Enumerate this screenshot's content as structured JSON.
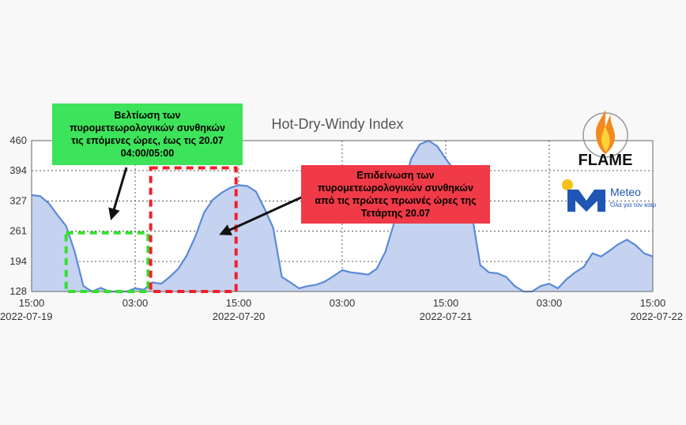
{
  "chart_data": {
    "type": "area",
    "title": "Hot-Dry-Windy Index",
    "yticks": [
      "460",
      "394",
      "327",
      "261",
      "194",
      "128"
    ],
    "ytick_values": [
      460,
      394,
      327,
      261,
      194,
      128
    ],
    "ylim": [
      128,
      460
    ],
    "xticks": [
      {
        "time": "15:00",
        "date": "2022-07-19",
        "hours": 0
      },
      {
        "time": "03:00",
        "date": "",
        "hours": 12
      },
      {
        "time": "15:00",
        "date": "2022-07-20",
        "hours": 24
      },
      {
        "time": "03:00",
        "date": "",
        "hours": 36
      },
      {
        "time": "15:00",
        "date": "2022-07-21",
        "hours": 48
      },
      {
        "time": "03:00",
        "date": "",
        "hours": 60
      },
      {
        "time": "15:00",
        "date": "2022-07-22",
        "hours": 72
      }
    ],
    "series": [
      {
        "x_hours": [
          0,
          1,
          2,
          3,
          4,
          5,
          6,
          7,
          8,
          9,
          10,
          11,
          12,
          13,
          14,
          15,
          16,
          17,
          18,
          19,
          20,
          21,
          22,
          23,
          24,
          25,
          26,
          27,
          28,
          29,
          30,
          31,
          32,
          33,
          34,
          35,
          36,
          37,
          38,
          39,
          40,
          41,
          42,
          43,
          44,
          45,
          46,
          47,
          48,
          49,
          50,
          51,
          52,
          53,
          54,
          55,
          56,
          57,
          58,
          59,
          60,
          61,
          62,
          63,
          64,
          65,
          66,
          67,
          68,
          69,
          70,
          71,
          72
        ],
        "values": [
          340,
          338,
          322,
          296,
          272,
          215,
          140,
          128,
          136,
          128,
          128,
          128,
          135,
          132,
          148,
          145,
          160,
          178,
          208,
          250,
          302,
          330,
          345,
          356,
          362,
          360,
          348,
          310,
          268,
          160,
          148,
          135,
          140,
          143,
          150,
          162,
          175,
          170,
          168,
          165,
          178,
          215,
          278,
          350,
          420,
          452,
          460,
          448,
          420,
          395,
          368,
          300,
          186,
          170,
          168,
          160,
          140,
          128,
          128,
          140,
          145,
          135,
          155,
          170,
          182,
          212,
          205,
          218,
          232,
          242,
          230,
          212,
          205
        ]
      }
    ],
    "annotations": [
      {
        "lines": [
          "Βελτίωση των",
          "πυρομετεωρολογικών συνθηκών",
          "τις επόμενες ώρες, έως τις 20.07",
          "04:00/05:00"
        ],
        "color": "#3de35a"
      },
      {
        "lines": [
          "Επιδείνωση των",
          "πυρομετεωρολογικών συνθηκών",
          "από τις πρώτες πρωινές ώρες της",
          "Τετάρτης 20.07"
        ],
        "color": "#f03a47"
      }
    ],
    "highlight_windows": [
      {
        "color": "#33e12f",
        "x_hours": [
          4,
          13.5
        ],
        "ylim": [
          128,
          257
        ]
      },
      {
        "color": "#f0202b",
        "x_hours": [
          13.8,
          23.7
        ],
        "ylim": [
          128,
          400
        ]
      }
    ],
    "grid": true,
    "fill_color": "#c5d3f0",
    "line_color": "#5b8ad8"
  },
  "logos": {
    "flame_text": "FLAME",
    "meteo_text": "Meteo",
    "meteo_tagline": "Όλα για τον καιρό"
  }
}
